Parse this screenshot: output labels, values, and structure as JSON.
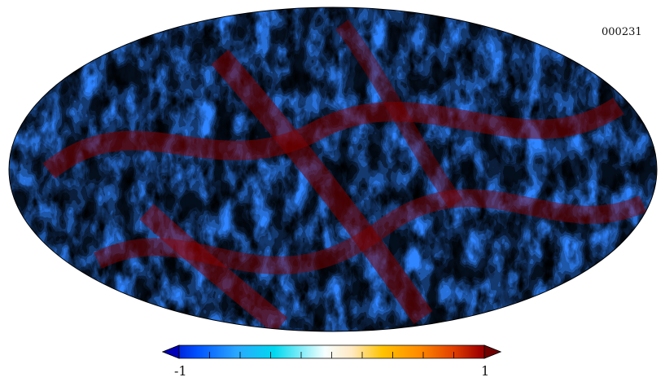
{
  "map": {
    "id_label": "000231",
    "colormap": [
      "#0000b8",
      "#1f5cff",
      "#3aa4ff",
      "#18d0f0",
      "#e8f4ff",
      "#fff2d2",
      "#ffcc40",
      "#ff8c00",
      "#e04000",
      "#8b0000",
      "#6b0000"
    ],
    "projection": "mollweide",
    "outline_color": "#000000"
  },
  "colorbar": {
    "min_label": "-1",
    "max_label": "1",
    "min_value": -1,
    "max_value": 1,
    "tick_count": 11,
    "colors": [
      "#0000b8",
      "#0050ff",
      "#2aa8ff",
      "#00d8f0",
      "#f6ffff",
      "#ffe9c3",
      "#ffc300",
      "#ff8a00",
      "#e23f00",
      "#a00000",
      "#700000"
    ]
  }
}
